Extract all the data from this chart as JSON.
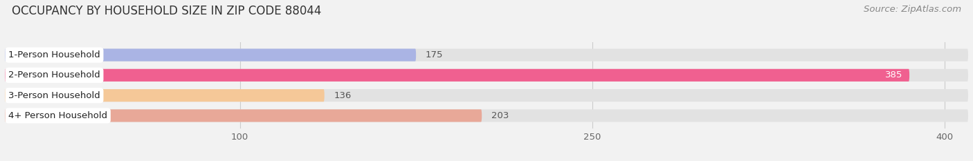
{
  "title": "OCCUPANCY BY HOUSEHOLD SIZE IN ZIP CODE 88044",
  "source_text": "Source: ZipAtlas.com",
  "categories": [
    "1-Person Household",
    "2-Person Household",
    "3-Person Household",
    "4+ Person Household"
  ],
  "values": [
    175,
    385,
    136,
    203
  ],
  "bar_colors": [
    "#aab4e4",
    "#f06090",
    "#f5c898",
    "#e8a898"
  ],
  "background_color": "#f2f2f2",
  "bar_bg_color": "#e2e2e2",
  "xlim": [
    0,
    410
  ],
  "xticks": [
    100,
    250,
    400
  ],
  "title_fontsize": 12,
  "source_fontsize": 9.5,
  "value_fontsize": 9.5,
  "tick_fontsize": 9.5,
  "label_fontsize": 9.5,
  "figsize": [
    14.06,
    2.33
  ],
  "dpi": 100
}
